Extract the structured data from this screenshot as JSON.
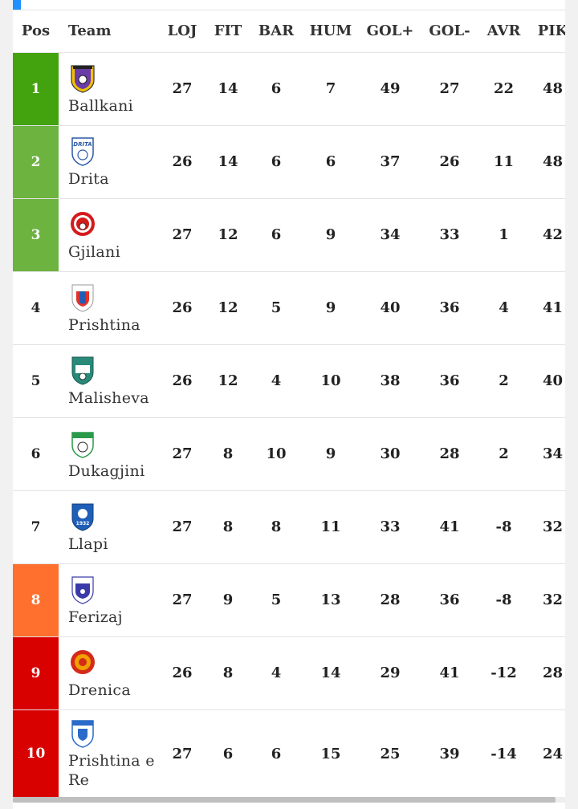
{
  "columns": {
    "pos": "Pos",
    "team": "Team",
    "loj": "LOJ",
    "fit": "FIT",
    "bar": "BAR",
    "hum": "HUM",
    "golp": "GOL+",
    "golm": "GOL-",
    "avr": "AVR",
    "pik": "PIK"
  },
  "rows": [
    {
      "pos": "1",
      "team": "Ballkani",
      "loj": "27",
      "fit": "14",
      "bar": "6",
      "hum": "7",
      "golp": "49",
      "golm": "27",
      "avr": "22",
      "pik": "48",
      "zone_color": "#43a30f",
      "crest": "ballkani-crest-icon"
    },
    {
      "pos": "2",
      "team": "Drita",
      "loj": "26",
      "fit": "14",
      "bar": "6",
      "hum": "6",
      "golp": "37",
      "golm": "26",
      "avr": "11",
      "pik": "48",
      "zone_color": "#6db33f",
      "crest": "drita-crest-icon"
    },
    {
      "pos": "3",
      "team": "Gjilani",
      "loj": "27",
      "fit": "12",
      "bar": "6",
      "hum": "9",
      "golp": "34",
      "golm": "33",
      "avr": "1",
      "pik": "42",
      "zone_color": "#6db33f",
      "crest": "gjilani-crest-icon"
    },
    {
      "pos": "4",
      "team": "Prishtina",
      "loj": "26",
      "fit": "12",
      "bar": "5",
      "hum": "9",
      "golp": "40",
      "golm": "36",
      "avr": "4",
      "pik": "41",
      "zone_color": "",
      "crest": "prishtina-crest-icon"
    },
    {
      "pos": "5",
      "team": "Malisheva",
      "loj": "26",
      "fit": "12",
      "bar": "4",
      "hum": "10",
      "golp": "38",
      "golm": "36",
      "avr": "2",
      "pik": "40",
      "zone_color": "",
      "crest": "malisheva-crest-icon"
    },
    {
      "pos": "6",
      "team": "Dukagjini",
      "loj": "27",
      "fit": "8",
      "bar": "10",
      "hum": "9",
      "golp": "30",
      "golm": "28",
      "avr": "2",
      "pik": "34",
      "zone_color": "",
      "crest": "dukagjini-crest-icon"
    },
    {
      "pos": "7",
      "team": "Llapi",
      "loj": "27",
      "fit": "8",
      "bar": "8",
      "hum": "11",
      "golp": "33",
      "golm": "41",
      "avr": "-8",
      "pik": "32",
      "zone_color": "",
      "crest": "llapi-crest-icon"
    },
    {
      "pos": "8",
      "team": "Ferizaj",
      "loj": "27",
      "fit": "9",
      "bar": "5",
      "hum": "13",
      "golp": "28",
      "golm": "36",
      "avr": "-8",
      "pik": "32",
      "zone_color": "#ff6f2d",
      "crest": "ferizaj-crest-icon"
    },
    {
      "pos": "9",
      "team": "Drenica",
      "loj": "26",
      "fit": "8",
      "bar": "4",
      "hum": "14",
      "golp": "29",
      "golm": "41",
      "avr": "-12",
      "pik": "28",
      "zone_color": "#d90000",
      "crest": "drenica-crest-icon"
    },
    {
      "pos": "10",
      "team": "Prishtina e Re",
      "loj": "27",
      "fit": "6",
      "bar": "6",
      "hum": "15",
      "golp": "25",
      "golm": "39",
      "avr": "-14",
      "pik": "24",
      "zone_color": "#d90000",
      "crest": "prishtina-e-re-crest-icon"
    }
  ]
}
